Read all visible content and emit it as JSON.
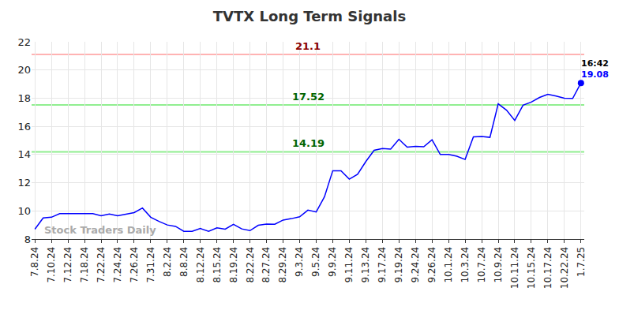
{
  "chart_data": {
    "type": "line",
    "title": "TVTX Long Term Signals",
    "categories": [
      "7.8.24",
      null,
      "7.10.24",
      null,
      "7.12.24",
      null,
      "7.18.24",
      null,
      "7.22.24",
      null,
      "7.24.24",
      null,
      "7.26.24",
      null,
      "7.31.24",
      null,
      "8.2.24",
      null,
      "8.8.24",
      null,
      "8.12.24",
      null,
      "8.15.24",
      null,
      "8.19.24",
      null,
      "8.22.24",
      null,
      "8.27.24",
      null,
      "8.29.24",
      null,
      "9.3.24",
      null,
      "9.5.24",
      null,
      "9.9.24",
      null,
      "9.11.24",
      null,
      "9.13.24",
      null,
      "9.17.24",
      null,
      "9.19.24",
      null,
      "9.24.24",
      null,
      "9.26.24",
      null,
      "10.1.24",
      null,
      "10.3.24",
      null,
      "10.7.24",
      null,
      "10.9.24",
      null,
      "10.11.24",
      null,
      "10.15.24",
      null,
      "10.17.24",
      null,
      "10.22.24",
      null,
      "1.7.25"
    ],
    "values": [
      8.7,
      9.5,
      9.55,
      9.8,
      9.8,
      9.8,
      9.8,
      9.8,
      9.65,
      9.78,
      9.65,
      9.75,
      9.88,
      10.2,
      9.55,
      9.25,
      9.0,
      8.9,
      8.55,
      8.55,
      8.75,
      8.55,
      8.8,
      8.7,
      9.05,
      8.72,
      8.6,
      8.98,
      9.07,
      9.05,
      9.35,
      9.45,
      9.58,
      10.05,
      9.92,
      11.0,
      12.85,
      12.85,
      12.25,
      12.6,
      13.5,
      14.3,
      14.42,
      14.38,
      15.08,
      14.52,
      14.58,
      14.55,
      15.05,
      14.0,
      14.0,
      13.88,
      13.65,
      15.25,
      15.28,
      15.22,
      17.6,
      17.15,
      16.42,
      17.5,
      17.72,
      18.05,
      18.28,
      18.15,
      18.0,
      17.98,
      19.08
    ],
    "color": "#0000ff",
    "ylim": [
      8,
      22
    ],
    "yticks": [
      8,
      10,
      12,
      14,
      16,
      18,
      20,
      22
    ],
    "grid": true,
    "levels": [
      {
        "value": 21.1,
        "color": "#ffb3b3",
        "label_color": "#8b0000"
      },
      {
        "value": 17.52,
        "color": "#90ee90",
        "label_color": "#006400"
      },
      {
        "value": 14.19,
        "color": "#90ee90",
        "label_color": "#006400"
      }
    ],
    "last_time": "16:42",
    "watermark": "Stock Traders Daily"
  }
}
